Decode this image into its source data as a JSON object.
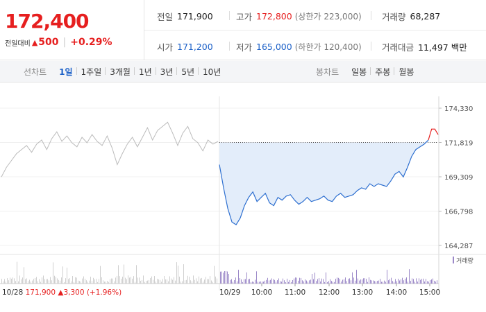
{
  "quote": {
    "price": "172,400",
    "change_label": "전일대비",
    "change_arrow": "▲",
    "change_value": "500",
    "change_pct": "+0.29%",
    "colors": {
      "up": "#e61f1f",
      "down": "#1a5fc7"
    }
  },
  "info": {
    "prev_close": {
      "label": "전일",
      "value": "171,900"
    },
    "high": {
      "label": "고가",
      "value": "172,800",
      "sub": "(상한가 223,000)"
    },
    "volume": {
      "label": "거래량",
      "value": "68,287"
    },
    "open": {
      "label": "시가",
      "value": "171,200"
    },
    "low": {
      "label": "저가",
      "value": "165,000",
      "sub": "(하한가 120,400)"
    },
    "amount": {
      "label": "거래대금",
      "value": "11,497 백만"
    }
  },
  "toolbar": {
    "line_label": "선차트",
    "line_periods": [
      "1일",
      "1주일",
      "3개월",
      "1년",
      "3년",
      "5년",
      "10년"
    ],
    "active_period": "1일",
    "candle_label": "봉차트",
    "candle_periods": [
      "일봉",
      "주봉",
      "월봉"
    ]
  },
  "chart_data": {
    "type": "line",
    "y_ticks": [
      "174,330",
      "171,819",
      "169,309",
      "166,798",
      "164,287"
    ],
    "ylim": [
      164287,
      174330
    ],
    "reference_line": 171819,
    "volume_legend": "거래량",
    "time_labels": [
      "10:00",
      "11:00",
      "12:00",
      "13:00",
      "14:00",
      "15:00"
    ],
    "prev_day": {
      "date": "10/28",
      "close": "171,900",
      "change": "▲3,300",
      "pct": "(+1.96%)"
    },
    "today_date": "10/29",
    "prev_series": [
      169300,
      170000,
      170500,
      171000,
      171300,
      171600,
      171100,
      171700,
      172000,
      171300,
      172100,
      172600,
      171900,
      172300,
      171800,
      171500,
      172200,
      171800,
      172400,
      171900,
      171600,
      172300,
      171400,
      170200,
      171000,
      171700,
      172200,
      171500,
      172200,
      172900,
      172000,
      172700,
      173000,
      173300,
      172500,
      171600,
      172500,
      173000,
      172100,
      171800,
      171200,
      172000,
      171700,
      171900
    ],
    "today_series": [
      170200,
      168500,
      167000,
      166000,
      165800,
      166300,
      167200,
      167800,
      168200,
      167500,
      167800,
      168100,
      167400,
      167200,
      167800,
      167600,
      167900,
      168000,
      167600,
      167300,
      167500,
      167800,
      167500,
      167600,
      167700,
      167900,
      167600,
      167500,
      167900,
      168100,
      167800,
      167900,
      168000,
      168300,
      168500,
      168400,
      168800,
      168600,
      168800,
      168700,
      168600,
      169000,
      169500,
      169700,
      169300,
      170000,
      170800,
      171300,
      171500,
      171700,
      172000
    ],
    "after_close": [
      172000,
      172800,
      172800,
      172400
    ],
    "colors": {
      "prev": "#bbbbbb",
      "today": "#2d6fd0",
      "fill": "#e3edfa",
      "after": "#e61f1f",
      "volume": "#9b88c8"
    }
  }
}
